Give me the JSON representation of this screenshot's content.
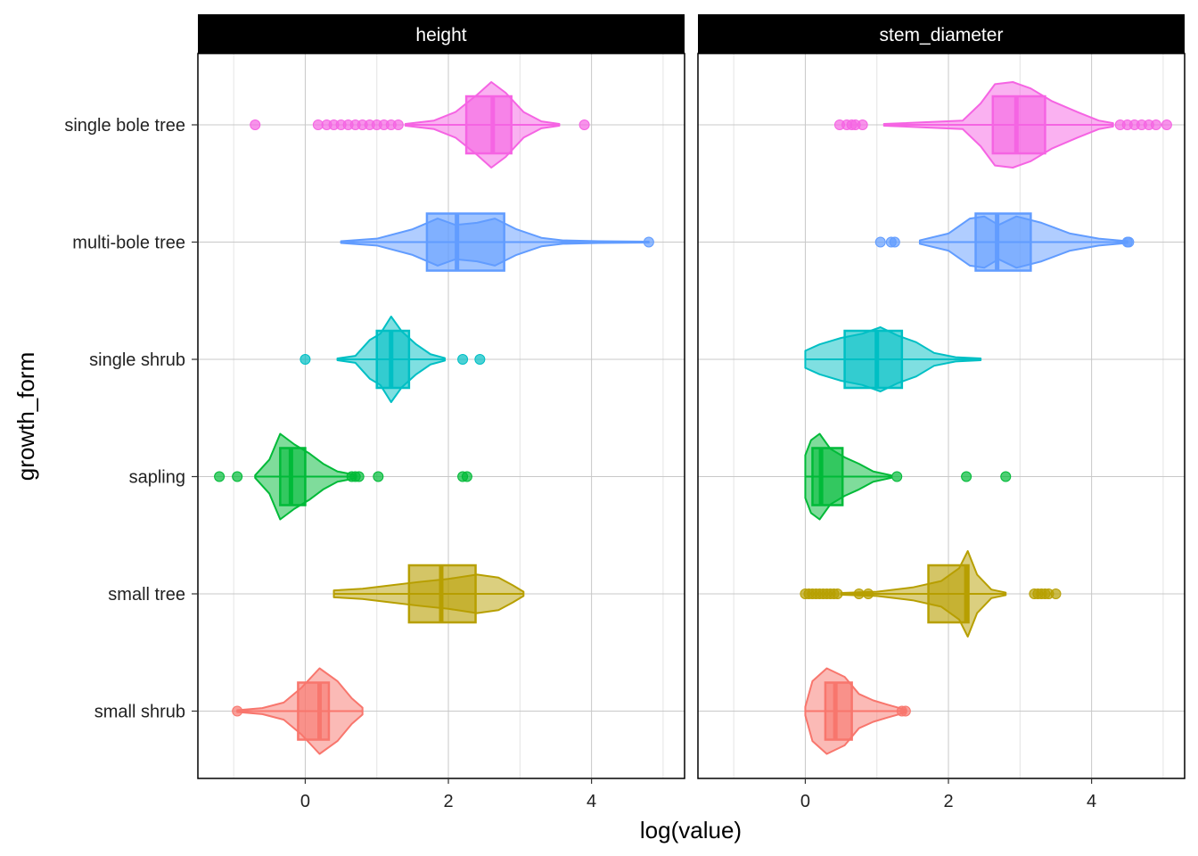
{
  "chart_data": {
    "type": "violin",
    "xlabel": "log(value)",
    "ylabel": "growth_form",
    "categories": [
      "small shrub",
      "small tree",
      "sapling",
      "single shrub",
      "multi-bole tree",
      "single bole tree"
    ],
    "colors": {
      "small shrub": "#F8766D",
      "small tree": "#B79F00",
      "sapling": "#00BA38",
      "single shrub": "#00BFC4",
      "multi-bole tree": "#619CFF",
      "single bole tree": "#F564E3"
    },
    "xlim": [
      -1.5,
      5.3
    ],
    "xticks": [
      0,
      2,
      4
    ],
    "grid": true,
    "legend": "none",
    "facets": [
      {
        "name": "height",
        "groups": [
          {
            "category": "small shrub",
            "q1": -0.1,
            "median": 0.2,
            "q3": 0.33,
            "min": -0.95,
            "max": 0.8,
            "violin": [
              [
                -0.95,
                0.02
              ],
              [
                -0.6,
                0.07
              ],
              [
                -0.3,
                0.2
              ],
              [
                -0.05,
                0.55
              ],
              [
                0.2,
                1.0
              ],
              [
                0.45,
                0.7
              ],
              [
                0.65,
                0.3
              ],
              [
                0.8,
                0.08
              ]
            ],
            "outliers": [
              -0.95
            ]
          },
          {
            "category": "small tree",
            "q1": 1.45,
            "median": 1.9,
            "q3": 2.38,
            "min": 0.4,
            "max": 3.05,
            "violin": [
              [
                0.4,
                0.08
              ],
              [
                0.8,
                0.12
              ],
              [
                1.2,
                0.2
              ],
              [
                1.6,
                0.28
              ],
              [
                2.0,
                0.35
              ],
              [
                2.4,
                0.45
              ],
              [
                2.7,
                0.38
              ],
              [
                2.9,
                0.2
              ],
              [
                3.05,
                0.05
              ]
            ],
            "outliers": []
          },
          {
            "category": "sapling",
            "q1": -0.35,
            "median": -0.2,
            "q3": 0.0,
            "min": -0.7,
            "max": 0.7,
            "violin": [
              [
                -0.7,
                0.03
              ],
              [
                -0.5,
                0.4
              ],
              [
                -0.35,
                1.0
              ],
              [
                -0.15,
                0.75
              ],
              [
                0.05,
                0.55
              ],
              [
                0.25,
                0.3
              ],
              [
                0.45,
                0.12
              ],
              [
                0.7,
                0.04
              ]
            ],
            "outliers": [
              -1.2,
              -0.95,
              0.65,
              0.7,
              0.75,
              1.02,
              2.2,
              2.26
            ]
          },
          {
            "category": "single shrub",
            "q1": 1.0,
            "median": 1.2,
            "q3": 1.45,
            "min": 0.45,
            "max": 1.95,
            "violin": [
              [
                0.45,
                0.02
              ],
              [
                0.7,
                0.08
              ],
              [
                0.9,
                0.45
              ],
              [
                1.05,
                0.6
              ],
              [
                1.2,
                1.0
              ],
              [
                1.35,
                0.65
              ],
              [
                1.55,
                0.35
              ],
              [
                1.75,
                0.12
              ],
              [
                1.95,
                0.03
              ]
            ],
            "outliers": [
              0.0,
              2.2,
              2.44
            ]
          },
          {
            "category": "multi-bole tree",
            "q1": 1.7,
            "median": 2.12,
            "q3": 2.78,
            "min": 0.5,
            "max": 4.8,
            "violin": [
              [
                0.5,
                0.02
              ],
              [
                1.0,
                0.08
              ],
              [
                1.5,
                0.3
              ],
              [
                1.85,
                0.55
              ],
              [
                2.1,
                0.4
              ],
              [
                2.4,
                0.45
              ],
              [
                2.65,
                0.55
              ],
              [
                2.95,
                0.3
              ],
              [
                3.3,
                0.1
              ],
              [
                3.6,
                0.04
              ],
              [
                4.1,
                0.02
              ],
              [
                4.8,
                0.01
              ]
            ],
            "outliers": [
              4.8
            ]
          },
          {
            "category": "single bole tree",
            "q1": 2.25,
            "median": 2.62,
            "q3": 2.88,
            "min": 1.4,
            "max": 3.55,
            "violin": [
              [
                1.4,
                0.02
              ],
              [
                1.8,
                0.1
              ],
              [
                2.1,
                0.3
              ],
              [
                2.4,
                0.7
              ],
              [
                2.6,
                1.0
              ],
              [
                2.8,
                0.75
              ],
              [
                3.05,
                0.3
              ],
              [
                3.3,
                0.08
              ],
              [
                3.55,
                0.02
              ]
            ],
            "outliers": [
              -0.7,
              0.18,
              0.3,
              0.4,
              0.5,
              0.6,
              0.7,
              0.8,
              0.9,
              1.0,
              1.1,
              1.2,
              1.3,
              3.9
            ]
          }
        ]
      },
      {
        "name": "stem_diameter",
        "groups": [
          {
            "category": "small shrub",
            "q1": 0.28,
            "median": 0.42,
            "q3": 0.65,
            "min": 0.0,
            "max": 1.4,
            "violin": [
              [
                0.0,
                0.1
              ],
              [
                0.1,
                0.7
              ],
              [
                0.3,
                1.0
              ],
              [
                0.55,
                0.8
              ],
              [
                0.75,
                0.4
              ],
              [
                0.95,
                0.25
              ],
              [
                1.15,
                0.15
              ],
              [
                1.3,
                0.08
              ],
              [
                1.4,
                0.03
              ]
            ],
            "outliers": [
              1.35,
              1.4
            ]
          },
          {
            "category": "small tree",
            "q1": 1.72,
            "median": 2.25,
            "q3": 2.28,
            "min": 0.5,
            "max": 2.8,
            "violin": [
              [
                0.5,
                0.02
              ],
              [
                1.0,
                0.05
              ],
              [
                1.5,
                0.15
              ],
              [
                1.9,
                0.3
              ],
              [
                2.15,
                0.6
              ],
              [
                2.27,
                1.0
              ],
              [
                2.4,
                0.45
              ],
              [
                2.6,
                0.1
              ],
              [
                2.8,
                0.03
              ]
            ],
            "outliers": [
              0.0,
              0.05,
              0.1,
              0.15,
              0.2,
              0.25,
              0.3,
              0.35,
              0.4,
              0.45,
              0.75,
              0.88,
              3.2,
              3.25,
              3.3,
              3.35,
              3.4,
              3.5
            ]
          },
          {
            "category": "sapling",
            "q1": 0.1,
            "median": 0.22,
            "q3": 0.52,
            "min": 0.0,
            "max": 1.2,
            "violin": [
              [
                0.0,
                0.5
              ],
              [
                0.08,
                0.85
              ],
              [
                0.2,
                1.0
              ],
              [
                0.35,
                0.65
              ],
              [
                0.55,
                0.45
              ],
              [
                0.75,
                0.3
              ],
              [
                0.95,
                0.12
              ],
              [
                1.2,
                0.03
              ]
            ],
            "outliers": [
              1.28,
              2.25,
              2.8
            ]
          },
          {
            "category": "single shrub",
            "q1": 0.55,
            "median": 1.0,
            "q3": 1.35,
            "min": 0.0,
            "max": 2.45,
            "violin": [
              [
                0.0,
                0.2
              ],
              [
                0.2,
                0.35
              ],
              [
                0.5,
                0.5
              ],
              [
                0.8,
                0.6
              ],
              [
                1.05,
                0.75
              ],
              [
                1.3,
                0.55
              ],
              [
                1.55,
                0.4
              ],
              [
                1.8,
                0.15
              ],
              [
                2.1,
                0.05
              ],
              [
                2.45,
                0.02
              ]
            ],
            "outliers": []
          },
          {
            "category": "multi-bole tree",
            "q1": 2.38,
            "median": 2.68,
            "q3": 3.15,
            "min": 1.6,
            "max": 4.5,
            "violin": [
              [
                1.6,
                0.04
              ],
              [
                2.0,
                0.2
              ],
              [
                2.3,
                0.55
              ],
              [
                2.5,
                0.6
              ],
              [
                2.7,
                0.4
              ],
              [
                2.95,
                0.6
              ],
              [
                3.3,
                0.45
              ],
              [
                3.7,
                0.2
              ],
              [
                4.1,
                0.08
              ],
              [
                4.5,
                0.02
              ]
            ],
            "outliers": [
              1.05,
              1.2,
              1.25,
              4.5,
              4.52
            ]
          },
          {
            "category": "single bole tree",
            "q1": 2.62,
            "median": 2.95,
            "q3": 3.35,
            "min": 1.1,
            "max": 4.3,
            "violin": [
              [
                1.1,
                0.02
              ],
              [
                2.2,
                0.1
              ],
              [
                2.45,
                0.5
              ],
              [
                2.65,
                0.95
              ],
              [
                2.9,
                1.0
              ],
              [
                3.15,
                0.85
              ],
              [
                3.45,
                0.55
              ],
              [
                3.8,
                0.3
              ],
              [
                4.1,
                0.1
              ],
              [
                4.3,
                0.04
              ]
            ],
            "outliers": [
              0.48,
              0.58,
              0.65,
              0.7,
              0.8,
              4.4,
              4.5,
              4.6,
              4.7,
              4.8,
              4.9,
              5.05
            ]
          }
        ]
      }
    ]
  }
}
